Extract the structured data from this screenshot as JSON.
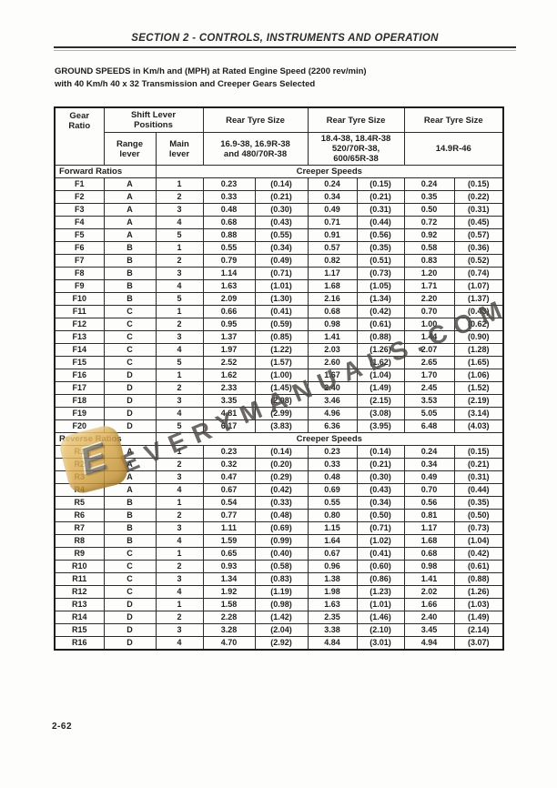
{
  "page": {
    "section_header": "SECTION 2  - CONTROLS, INSTRUMENTS AND OPERATION",
    "title_line1": "GROUND SPEEDS in Km/h and (MPH) at Rated Engine Speed (2200 rev/min)",
    "title_line2": "with 40 Km/h 40 x 32 Transmission and Creeper Gears Selected",
    "page_number": "2-62"
  },
  "watermark": {
    "text": "EVERYMANUALS.COM",
    "logo_letter": "E",
    "logo_color": "#dcad52",
    "text_color": "#4a4744"
  },
  "table": {
    "header": {
      "gear_ratio": "Gear\nRatio",
      "shift_lever_positions": "Shift Lever\nPositions",
      "range_lever": "Range\nlever",
      "main_lever": "Main\nlever",
      "rear_tyre_size": "Rear Tyre Size",
      "tyre_spec_1": "16.9-38, 16.9R-38\nand 480/70R-38",
      "tyre_spec_2": "18.4-38, 18.4R-38\n520/70R-38,\n600/65R-38",
      "tyre_spec_3": "14.9R-46"
    },
    "forward_label": "Forward Ratios",
    "reverse_label": "Reverse Ratios",
    "creeper_label": "Creeper Speeds",
    "forward_rows": [
      [
        "F1",
        "A",
        "1",
        "0.23",
        "(0.14)",
        "0.24",
        "(0.15)",
        "0.24",
        "(0.15)"
      ],
      [
        "F2",
        "A",
        "2",
        "0.33",
        "(0.21)",
        "0.34",
        "(0.21)",
        "0.35",
        "(0.22)"
      ],
      [
        "F3",
        "A",
        "3",
        "0.48",
        "(0.30)",
        "0.49",
        "(0.31)",
        "0.50",
        "(0.31)"
      ],
      [
        "F4",
        "A",
        "4",
        "0.68",
        "(0.43)",
        "0.71",
        "(0.44)",
        "0.72",
        "(0.45)"
      ],
      [
        "F5",
        "A",
        "5",
        "0.88",
        "(0.55)",
        "0.91",
        "(0.56)",
        "0.92",
        "(0.57)"
      ],
      [
        "F6",
        "B",
        "1",
        "0.55",
        "(0.34)",
        "0.57",
        "(0.35)",
        "0.58",
        "(0.36)"
      ],
      [
        "F7",
        "B",
        "2",
        "0.79",
        "(0.49)",
        "0.82",
        "(0.51)",
        "0.83",
        "(0.52)"
      ],
      [
        "F8",
        "B",
        "3",
        "1.14",
        "(0.71)",
        "1.17",
        "(0.73)",
        "1.20",
        "(0.74)"
      ],
      [
        "F9",
        "B",
        "4",
        "1.63",
        "(1.01)",
        "1.68",
        "(1.05)",
        "1.71",
        "(1.07)"
      ],
      [
        "F10",
        "B",
        "5",
        "2.09",
        "(1.30)",
        "2.16",
        "(1.34)",
        "2.20",
        "(1.37)"
      ],
      [
        "F11",
        "C",
        "1",
        "0.66",
        "(0.41)",
        "0.68",
        "(0.42)",
        "0.70",
        "(0.43)"
      ],
      [
        "F12",
        "C",
        "2",
        "0.95",
        "(0.59)",
        "0.98",
        "(0.61)",
        "1.00",
        "(0.62)"
      ],
      [
        "F13",
        "C",
        "3",
        "1.37",
        "(0.85)",
        "1.41",
        "(0.88)",
        "1.44",
        "(0.90)"
      ],
      [
        "F14",
        "C",
        "4",
        "1.97",
        "(1.22)",
        "2.03",
        "(1.26)",
        "2.07",
        "(1.28)"
      ],
      [
        "F15",
        "C",
        "5",
        "2.52",
        "(1.57)",
        "2.60",
        "(1.62)",
        "2.65",
        "(1.65)"
      ],
      [
        "F16",
        "D",
        "1",
        "1.62",
        "(1.00)",
        "1.67",
        "(1.04)",
        "1.70",
        "(1.06)"
      ],
      [
        "F17",
        "D",
        "2",
        "2.33",
        "(1.45)",
        "2.40",
        "(1.49)",
        "2.45",
        "(1.52)"
      ],
      [
        "F18",
        "D",
        "3",
        "3.35",
        "(2.08)",
        "3.46",
        "(2.15)",
        "3.53",
        "(2.19)"
      ],
      [
        "F19",
        "D",
        "4",
        "4.81",
        "(2.99)",
        "4.96",
        "(3.08)",
        "5.05",
        "(3.14)"
      ],
      [
        "F20",
        "D",
        "5",
        "6.17",
        "(3.83)",
        "6.36",
        "(3.95)",
        "6.48",
        "(4.03)"
      ]
    ],
    "reverse_rows": [
      [
        "R1",
        "A",
        "1",
        "0.23",
        "(0.14)",
        "0.23",
        "(0.14)",
        "0.24",
        "(0.15)"
      ],
      [
        "R2",
        "A",
        "2",
        "0.32",
        "(0.20)",
        "0.33",
        "(0.21)",
        "0.34",
        "(0.21)"
      ],
      [
        "R3",
        "A",
        "3",
        "0.47",
        "(0.29)",
        "0.48",
        "(0.30)",
        "0.49",
        "(0.31)"
      ],
      [
        "R4",
        "A",
        "4",
        "0.67",
        "(0.42)",
        "0.69",
        "(0.43)",
        "0.70",
        "(0.44)"
      ],
      [
        "R5",
        "B",
        "1",
        "0.54",
        "(0.33)",
        "0.55",
        "(0.34)",
        "0.56",
        "(0.35)"
      ],
      [
        "R6",
        "B",
        "2",
        "0.77",
        "(0.48)",
        "0.80",
        "(0.50)",
        "0.81",
        "(0.50)"
      ],
      [
        "R7",
        "B",
        "3",
        "1.11",
        "(0.69)",
        "1.15",
        "(0.71)",
        "1.17",
        "(0.73)"
      ],
      [
        "R8",
        "B",
        "4",
        "1.59",
        "(0.99)",
        "1.64",
        "(1.02)",
        "1.68",
        "(1.04)"
      ],
      [
        "R9",
        "C",
        "1",
        "0.65",
        "(0.40)",
        "0.67",
        "(0.41)",
        "0.68",
        "(0.42)"
      ],
      [
        "R10",
        "C",
        "2",
        "0.93",
        "(0.58)",
        "0.96",
        "(0.60)",
        "0.98",
        "(0.61)"
      ],
      [
        "R11",
        "C",
        "3",
        "1.34",
        "(0.83)",
        "1.38",
        "(0.86)",
        "1.41",
        "(0.88)"
      ],
      [
        "R12",
        "C",
        "4",
        "1.92",
        "(1.19)",
        "1.98",
        "(1.23)",
        "2.02",
        "(1.26)"
      ],
      [
        "R13",
        "D",
        "1",
        "1.58",
        "(0.98)",
        "1.63",
        "(1.01)",
        "1.66",
        "(1.03)"
      ],
      [
        "R14",
        "D",
        "2",
        "2.28",
        "(1.42)",
        "2.35",
        "(1.46)",
        "2.40",
        "(1.49)"
      ],
      [
        "R15",
        "D",
        "3",
        "3.28",
        "(2.04)",
        "3.38",
        "(2.10)",
        "3.45",
        "(2.14)"
      ],
      [
        "R16",
        "D",
        "4",
        "4.70",
        "(2.92)",
        "4.84",
        "(3.01)",
        "4.94",
        "(3.07)"
      ]
    ]
  }
}
